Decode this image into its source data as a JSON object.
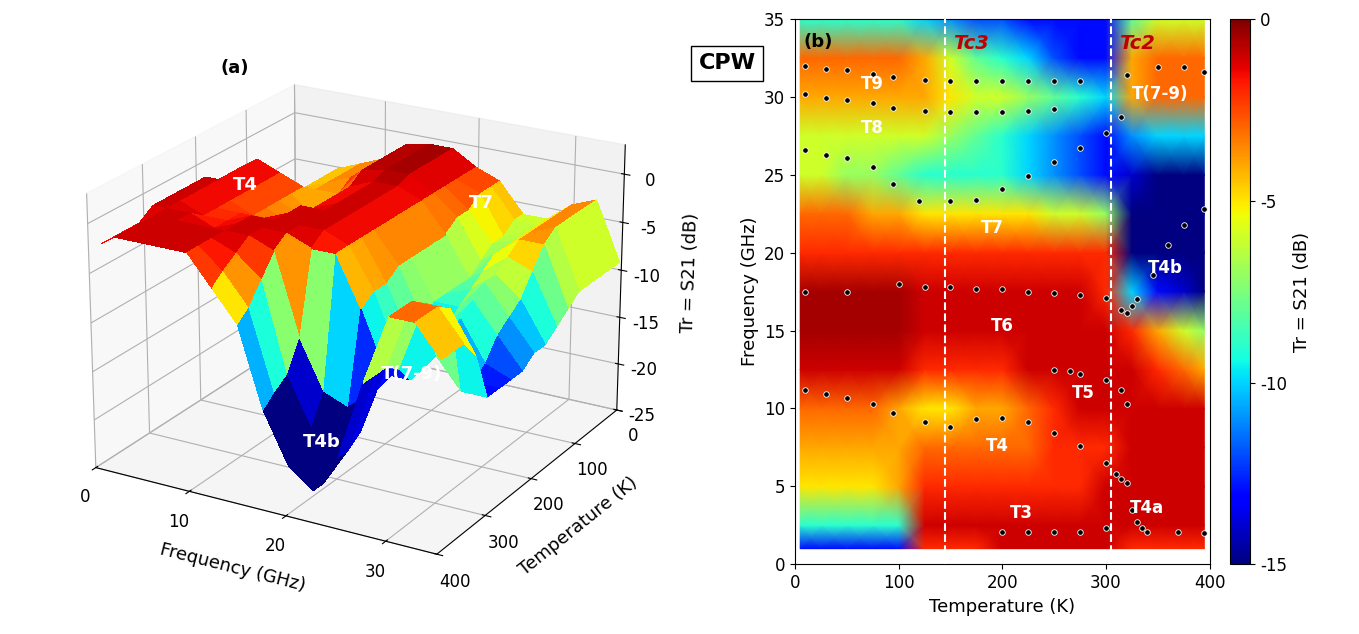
{
  "figure_label": "CPW",
  "chart_data": [
    {
      "type": "surface3d",
      "panel": "(a)",
      "x_label": "Frequency (GHz)",
      "y_label": "Temperature (K)",
      "z_label": "Tr = S21 (dB)",
      "x": [
        1,
        2.5,
        5,
        7.5,
        10,
        12.5,
        15,
        17.5,
        20,
        22.5,
        25,
        27.5,
        30,
        32.5,
        35
      ],
      "y": [
        5,
        25,
        50,
        75,
        100,
        125,
        150,
        175,
        200,
        225,
        250,
        275,
        300,
        325,
        350,
        375,
        395
      ],
      "z": [
        [
          -13,
          -13,
          -13,
          -13,
          -13,
          -2,
          -2,
          -2,
          -1,
          -1,
          -1,
          -1,
          -1,
          -2,
          -2,
          -2,
          -2
        ],
        [
          -9,
          -9,
          -9,
          -9,
          -9,
          -1,
          -1,
          -1,
          -1,
          -1,
          -1,
          -1,
          -1,
          -1,
          -1,
          -1,
          -1
        ],
        [
          -5,
          -5,
          -5,
          -5,
          -4,
          -2,
          -2,
          -2,
          -2,
          -2,
          -2,
          -2,
          -1,
          -1,
          -1,
          -1,
          -1
        ],
        [
          -4,
          -4,
          -4,
          -4,
          -4,
          -3,
          -3,
          -3,
          -3,
          -3,
          -2,
          -2,
          -2,
          -1,
          -1,
          -1,
          -1
        ],
        [
          -3,
          -3,
          -3,
          -3,
          -4,
          -5,
          -5,
          -4,
          -4,
          -3,
          -2,
          -1,
          -1,
          -1,
          -1,
          -1,
          -1
        ],
        [
          -1,
          -1,
          -1,
          -1,
          -1,
          -2,
          -2,
          -2,
          -2,
          -1,
          -1,
          -1,
          -1,
          -1,
          -2,
          -3,
          -4
        ],
        [
          -0.5,
          -0.5,
          -0.5,
          -0.5,
          -0.5,
          -1,
          -1,
          -1,
          -1,
          -1,
          -1,
          -1,
          -1,
          -2,
          -4,
          -6,
          -7
        ],
        [
          -0.5,
          -0.5,
          -0.5,
          -0.5,
          -0.5,
          -1,
          -1,
          -1,
          -1,
          -1,
          -1,
          -1,
          -2,
          -10,
          -13,
          -14,
          -15
        ],
        [
          -2,
          -2,
          -2,
          -2,
          -2,
          -2,
          -2,
          -2,
          -2,
          -2,
          -2,
          -2,
          -2,
          -15,
          -18,
          -20,
          -20
        ],
        [
          -3,
          -3,
          -3,
          -4,
          -4,
          -5,
          -5,
          -5,
          -5,
          -5,
          -6,
          -6,
          -7,
          -16,
          -20,
          -22,
          -22
        ],
        [
          -6,
          -6,
          -7,
          -7,
          -8,
          -9,
          -9,
          -9,
          -9,
          -10,
          -11,
          -12,
          -13,
          -14,
          -17,
          -18,
          -18
        ],
        [
          -6,
          -6,
          -6,
          -6,
          -6,
          -6,
          -7,
          -8,
          -9,
          -10,
          -11,
          -12,
          -13,
          -11,
          -10,
          -10,
          -10
        ],
        [
          -4,
          -4,
          -4,
          -4,
          -4,
          -4,
          -5,
          -6,
          -6,
          -7,
          -8,
          -9,
          -10,
          -4,
          -3,
          -3,
          -3
        ],
        [
          -3,
          -3,
          -3,
          -3,
          -3,
          -4,
          -6,
          -8,
          -9,
          -10,
          -12,
          -13,
          -13,
          -4,
          -3,
          -3,
          -3
        ],
        [
          -9,
          -9,
          -9,
          -9,
          -9,
          -10,
          -11,
          -12,
          -12,
          -13,
          -13,
          -13,
          -13,
          -8,
          -6,
          -6,
          -6
        ]
      ],
      "xlim": [
        0,
        35
      ],
      "xticks": [
        0,
        10,
        20,
        30
      ],
      "ylim": [
        0,
        400
      ],
      "yticks": [
        0,
        100,
        200,
        300,
        400
      ],
      "zlim": [
        -25,
        3
      ],
      "zticks": [
        -25,
        -20,
        -15,
        -10,
        -5,
        0
      ],
      "annotations": [
        {
          "text": "T4",
          "x": 8,
          "y": 250,
          "z": 1
        },
        {
          "text": "T7",
          "x": 25,
          "y": 100,
          "z": -2
        },
        {
          "text": "T4b",
          "x": 20,
          "y": 330,
          "z": -20
        },
        {
          "text": "T(7-9)",
          "x": 29,
          "y": 330,
          "z": -11
        }
      ]
    },
    {
      "type": "heatmap",
      "panel": "(b)",
      "x_label": "Temperature (K)",
      "y_label": "Frequency (GHz)",
      "x": [
        5,
        25,
        50,
        75,
        100,
        125,
        150,
        175,
        200,
        225,
        250,
        275,
        300,
        325,
        350,
        375,
        395
      ],
      "y": [
        1,
        2.5,
        5,
        7.5,
        10,
        12.5,
        15,
        17.5,
        20,
        22.5,
        25,
        27.5,
        30,
        32.5,
        35
      ],
      "cells": [
        [
          -13,
          -13,
          -13,
          -13,
          -13,
          -2,
          -2,
          -2,
          -1,
          -1,
          -1,
          -1,
          -1,
          -2,
          -2,
          -2,
          -2
        ],
        [
          -9,
          -9,
          -9,
          -9,
          -9,
          -1,
          -1,
          -1,
          -1,
          -1,
          -1,
          -1,
          -1,
          -1,
          -1,
          -1,
          -1
        ],
        [
          -5,
          -5,
          -5,
          -5,
          -4,
          -2,
          -2,
          -2,
          -2,
          -2,
          -2,
          -2,
          -1,
          -1,
          -1,
          -1,
          -1
        ],
        [
          -4,
          -4,
          -4,
          -4,
          -4,
          -3,
          -3,
          -3,
          -3,
          -3,
          -2,
          -2,
          -2,
          -1,
          -1,
          -1,
          -1
        ],
        [
          -3,
          -3,
          -3,
          -3,
          -4,
          -5,
          -5,
          -4,
          -4,
          -3,
          -2,
          -1,
          -1,
          -1,
          -1,
          -1,
          -1
        ],
        [
          -1,
          -1,
          -1,
          -1,
          -1,
          -2,
          -2,
          -2,
          -2,
          -1,
          -1,
          -1,
          -1,
          -1,
          -2,
          -3,
          -4
        ],
        [
          -0.5,
          -0.5,
          -0.5,
          -0.5,
          -0.5,
          -1,
          -1,
          -1,
          -1,
          -1,
          -1,
          -1,
          -1,
          -2,
          -4,
          -6,
          -7
        ],
        [
          -0.5,
          -0.5,
          -0.5,
          -0.5,
          -0.5,
          -1,
          -1,
          -1,
          -1,
          -1,
          -1,
          -1,
          -2,
          -10,
          -13,
          -14,
          -15
        ],
        [
          -2,
          -2,
          -2,
          -2,
          -2,
          -2,
          -2,
          -2,
          -2,
          -2,
          -2,
          -2,
          -2,
          -15,
          -18,
          -20,
          -20
        ],
        [
          -3,
          -3,
          -3,
          -4,
          -4,
          -5,
          -5,
          -5,
          -5,
          -5,
          -6,
          -6,
          -7,
          -16,
          -20,
          -22,
          -22
        ],
        [
          -6,
          -6,
          -7,
          -7,
          -8,
          -9,
          -9,
          -9,
          -9,
          -10,
          -11,
          -12,
          -13,
          -14,
          -17,
          -18,
          -18
        ],
        [
          -6,
          -6,
          -6,
          -6,
          -6,
          -6,
          -7,
          -8,
          -9,
          -10,
          -11,
          -12,
          -13,
          -11,
          -10,
          -10,
          -10
        ],
        [
          -4,
          -4,
          -4,
          -4,
          -4,
          -4,
          -5,
          -6,
          -6,
          -7,
          -8,
          -9,
          -10,
          -4,
          -3,
          -3,
          -3
        ],
        [
          -3,
          -3,
          -3,
          -3,
          -3,
          -4,
          -6,
          -8,
          -9,
          -10,
          -12,
          -13,
          -13,
          -4,
          -3,
          -3,
          -3
        ],
        [
          -9,
          -9,
          -9,
          -9,
          -9,
          -10,
          -11,
          -12,
          -12,
          -13,
          -13,
          -13,
          -13,
          -8,
          -6,
          -6,
          -6
        ]
      ],
      "xlim": [
        0,
        400
      ],
      "xticks": [
        0,
        100,
        200,
        300,
        400
      ],
      "ylim": [
        0,
        35
      ],
      "yticks": [
        0,
        5,
        10,
        15,
        20,
        25,
        30,
        35
      ],
      "colorbar": {
        "label": "Tr = S21 (dB)",
        "range": [
          -15,
          0
        ],
        "ticks": [
          -15,
          -10,
          -5,
          0
        ]
      },
      "points": [
        {
          "x": [
            10,
            30,
            50,
            75,
            95,
            125,
            150,
            175,
            200,
            225,
            250,
            275
          ],
          "y": [
            32,
            31.8,
            31.7,
            31.5,
            31.3,
            31.1,
            31,
            31,
            31,
            31,
            31,
            31
          ]
        },
        {
          "x": [
            10,
            30,
            50,
            75,
            95,
            125,
            150,
            175,
            200,
            225,
            250,
            300
          ],
          "y": [
            30.2,
            29.9,
            29.8,
            29.6,
            29.3,
            29.1,
            29,
            29,
            29,
            29.1,
            29.2,
            27.7
          ]
        },
        {
          "x": [
            10,
            30,
            50,
            75,
            95,
            120,
            150,
            175,
            200,
            225,
            250,
            275,
            315
          ],
          "y": [
            26.6,
            26.3,
            26.1,
            25.5,
            24.4,
            23.3,
            23.3,
            23.4,
            24.1,
            24.9,
            25.8,
            26.7,
            28.7
          ]
        },
        {
          "x": [
            320,
            350,
            375,
            395
          ],
          "y": [
            31.4,
            31.9,
            31.9,
            31.6
          ]
        },
        {
          "x": [
            10,
            50,
            100,
            125,
            150,
            175,
            200,
            225,
            250,
            275,
            300,
            315,
            320,
            325,
            330,
            345,
            360,
            375,
            395
          ],
          "y": [
            17.5,
            17.5,
            18,
            17.8,
            17.8,
            17.7,
            17.7,
            17.5,
            17.4,
            17.3,
            17.1,
            16.3,
            16.1,
            16.6,
            17,
            18.6,
            20.5,
            21.8,
            22.8
          ]
        },
        {
          "x": [
            250,
            265,
            275,
            300,
            315,
            320
          ],
          "y": [
            12.5,
            12.4,
            12.2,
            11.8,
            11.2,
            10.3
          ]
        },
        {
          "x": [
            10,
            30,
            50,
            75,
            95,
            125,
            150,
            175,
            200,
            225,
            250,
            275,
            300,
            310,
            315,
            320,
            325,
            330,
            335
          ],
          "y": [
            11.2,
            10.9,
            10.7,
            10.3,
            9.7,
            9.1,
            8.8,
            9.3,
            9.4,
            9.1,
            8.4,
            7.6,
            6.5,
            5.8,
            5.5,
            5.2,
            3.5,
            2.7,
            2.3
          ]
        },
        {
          "x": [
            200,
            225,
            250,
            275,
            300,
            340,
            370,
            395
          ],
          "y": [
            2.1,
            2.1,
            2.1,
            2.1,
            2.3,
            2.1,
            2.1,
            2.0
          ]
        }
      ],
      "reference_lines": [
        {
          "label": "Tc3",
          "x": 145
        },
        {
          "label": "Tc2",
          "x": 305
        }
      ],
      "annotations": [
        {
          "text": "T9",
          "x": 75,
          "y": 30.8
        },
        {
          "text": "T8",
          "x": 75,
          "y": 28.0
        },
        {
          "text": "T7",
          "x": 190,
          "y": 21.6
        },
        {
          "text": "T(7-9)",
          "x": 352,
          "y": 30.2
        },
        {
          "text": "T4b",
          "x": 357,
          "y": 19.0
        },
        {
          "text": "T6",
          "x": 200,
          "y": 15.3
        },
        {
          "text": "T5",
          "x": 278,
          "y": 11.0
        },
        {
          "text": "T4",
          "x": 195,
          "y": 7.6
        },
        {
          "text": "T4a",
          "x": 340,
          "y": 3.6
        },
        {
          "text": "T3",
          "x": 218,
          "y": 3.3
        }
      ]
    }
  ]
}
